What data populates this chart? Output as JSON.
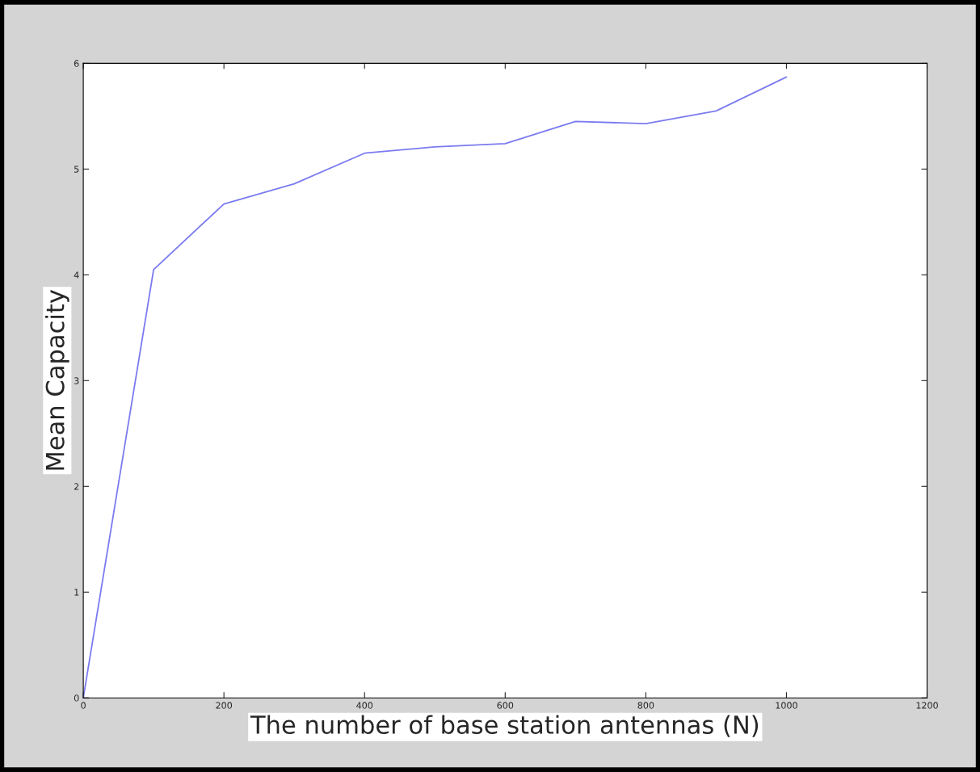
{
  "chart_data": {
    "type": "line",
    "xlabel": "The number of base station antennas (N)",
    "ylabel": "Mean Capacity",
    "x": [
      0,
      100,
      200,
      300,
      400,
      500,
      600,
      700,
      800,
      900,
      1000
    ],
    "series": [
      {
        "color": "#7b7bf0",
        "values": [
          0,
          4.05,
          4.67,
          4.86,
          5.15,
          5.21,
          5.24,
          5.45,
          5.43,
          5.55,
          5.87
        ]
      }
    ],
    "xlim": [
      0,
      1200
    ],
    "xticks": [
      0,
      200,
      400,
      600,
      800,
      1000,
      1200
    ],
    "ylim": [
      0,
      6
    ],
    "yticks": [
      0,
      1,
      2,
      3,
      4,
      5,
      6
    ],
    "grid": false
  }
}
